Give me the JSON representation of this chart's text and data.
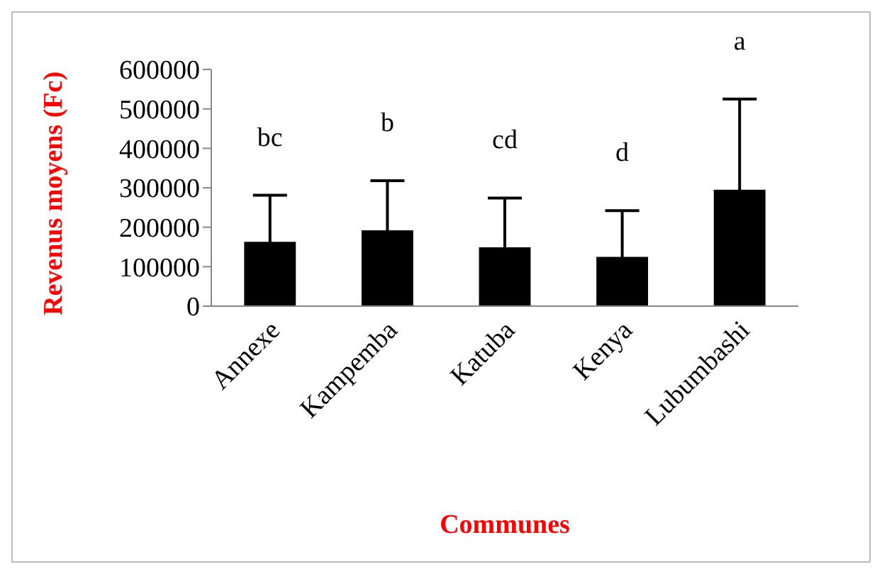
{
  "chart_data": {
    "type": "bar",
    "xlabel": "Communes",
    "ylabel": "Revenus moyens (Fc)",
    "categories": [
      "Annexe",
      "Kampemba",
      "Katuba",
      "Kenya",
      "Lubumbashi"
    ],
    "values": [
      163000,
      192000,
      149000,
      125000,
      295000
    ],
    "errors": [
      118000,
      126000,
      125000,
      117000,
      230000
    ],
    "color": "#000000",
    "ylim": [
      0,
      600000
    ],
    "yticks": [
      0,
      100000,
      200000,
      300000,
      400000,
      500000,
      600000
    ],
    "grid": false,
    "legend": false,
    "annotations": [
      "bc",
      "b",
      "cd",
      "d",
      "a"
    ]
  }
}
